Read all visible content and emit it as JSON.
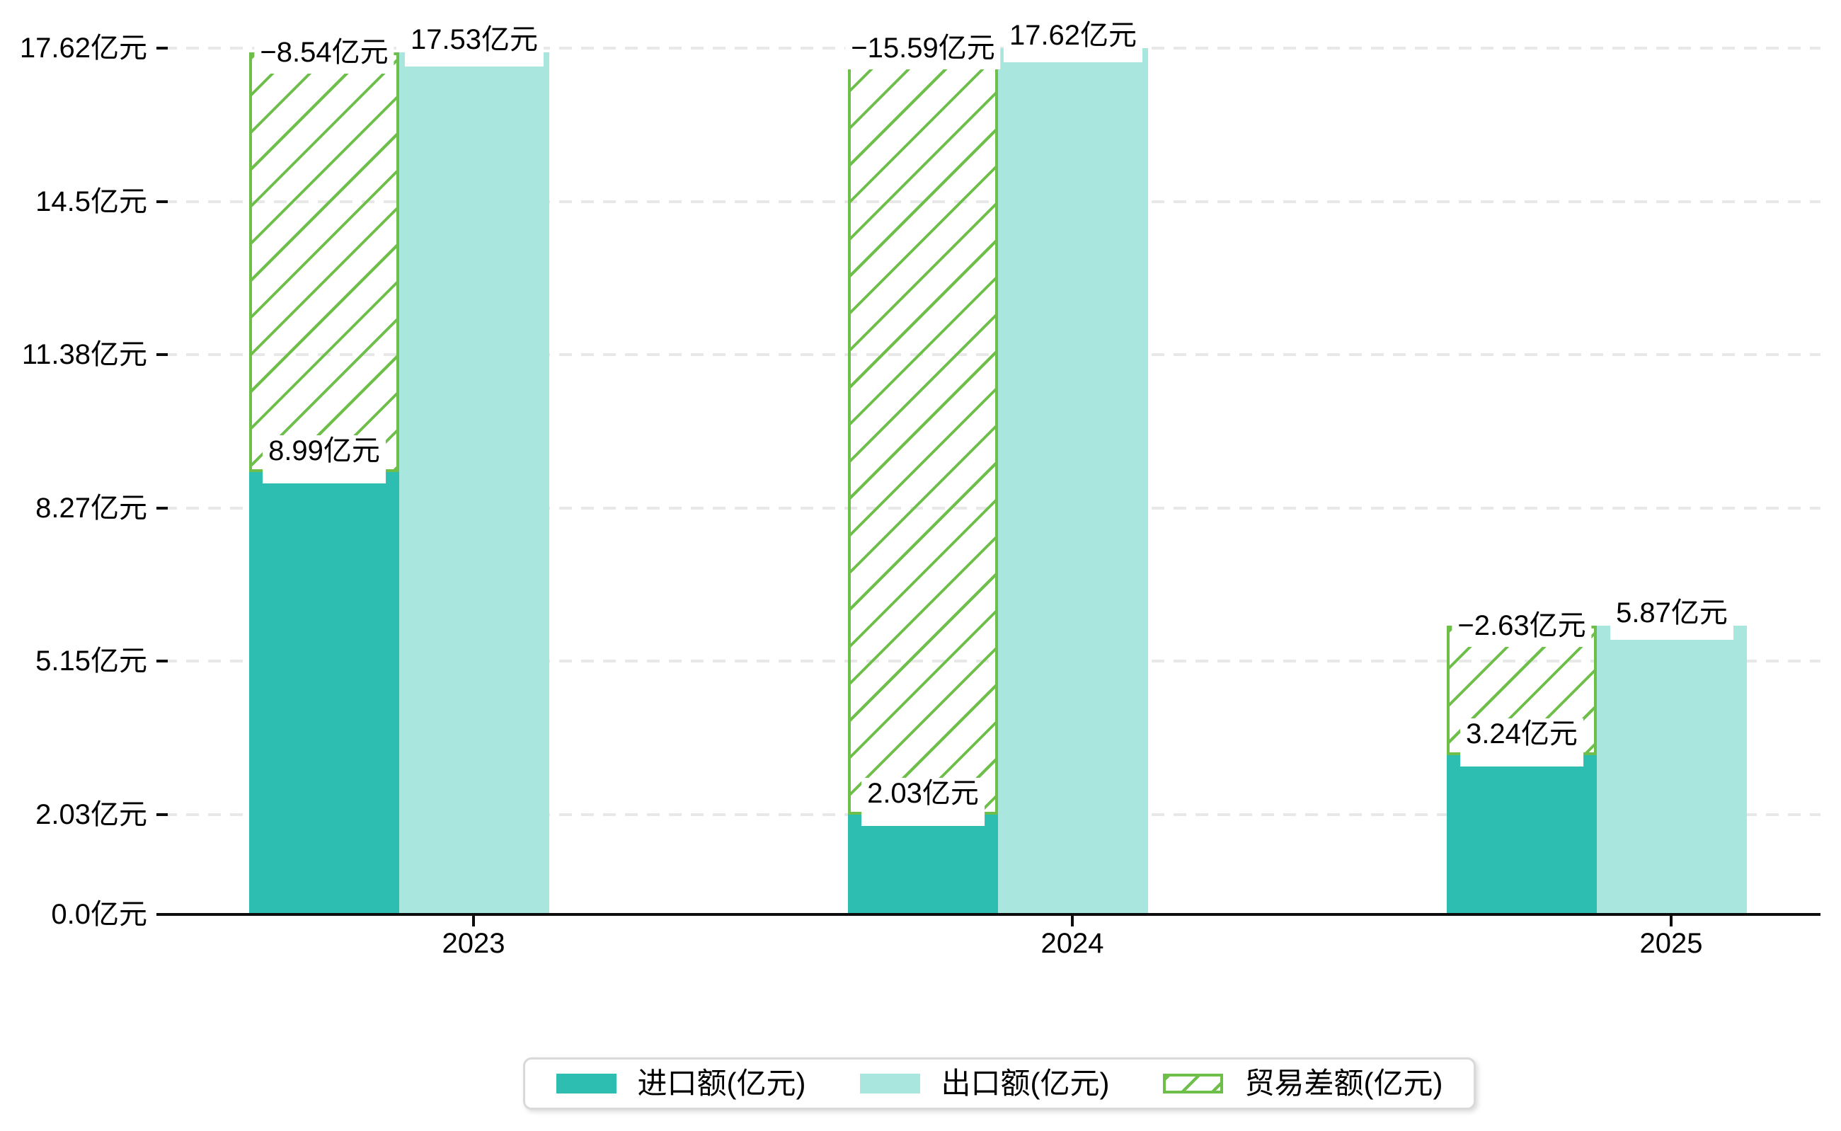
{
  "chart_data": {
    "type": "bar",
    "title": "",
    "categories": [
      "2023",
      "2024",
      "2025"
    ],
    "series": [
      {
        "name": "进口额(亿元)",
        "role": "import",
        "values": [
          8.99,
          2.03,
          3.24
        ],
        "value_labels": [
          "8.99亿元",
          "2.03亿元",
          "3.24亿元"
        ],
        "color": "#2ebeb1",
        "style": "solid"
      },
      {
        "name": "出口额(亿元)",
        "role": "export",
        "values": [
          17.53,
          17.62,
          5.87
        ],
        "value_labels": [
          "17.53亿元",
          "17.62亿元",
          "5.87亿元"
        ],
        "color": "#a8e6de",
        "style": "solid"
      },
      {
        "name": "贸易差额(亿元)",
        "role": "balance",
        "values": [
          -8.54,
          -15.59,
          -2.63
        ],
        "value_labels": [
          "−8.54亿元",
          "−15.59亿元",
          "−2.63亿元"
        ],
        "color": "#6dbf4a",
        "style": "hatched",
        "bar_spans": [
          [
            8.99,
            17.53
          ],
          [
            2.03,
            17.62
          ],
          [
            3.24,
            5.87
          ]
        ]
      }
    ],
    "y_axis": {
      "unit": "亿元",
      "range": [
        0,
        17.62
      ],
      "ticks": [
        {
          "value": 0,
          "label": "0.0亿元"
        },
        {
          "value": 2.03,
          "label": "2.03亿元"
        },
        {
          "value": 5.15,
          "label": "5.15亿元"
        },
        {
          "value": 8.27,
          "label": "8.27亿元"
        },
        {
          "value": 11.38,
          "label": "11.38亿元"
        },
        {
          "value": 14.5,
          "label": "14.5亿元"
        },
        {
          "value": 17.62,
          "label": "17.62亿元"
        }
      ]
    },
    "x_axis": {
      "tick_labels": [
        "2023",
        "2024",
        "2025"
      ]
    },
    "grid": "horizontal dashed",
    "legend_position": "bottom center"
  },
  "colors": {
    "import_fill": "#2ebeb1",
    "export_fill": "#a8e6de",
    "balance_green": "#6dbf4a",
    "axis": "#0d0d0d",
    "gridline": "#e8e8e8",
    "label_text": "#000000",
    "label_bg": "#ffffff",
    "legend_border": "#d9d9d9"
  }
}
